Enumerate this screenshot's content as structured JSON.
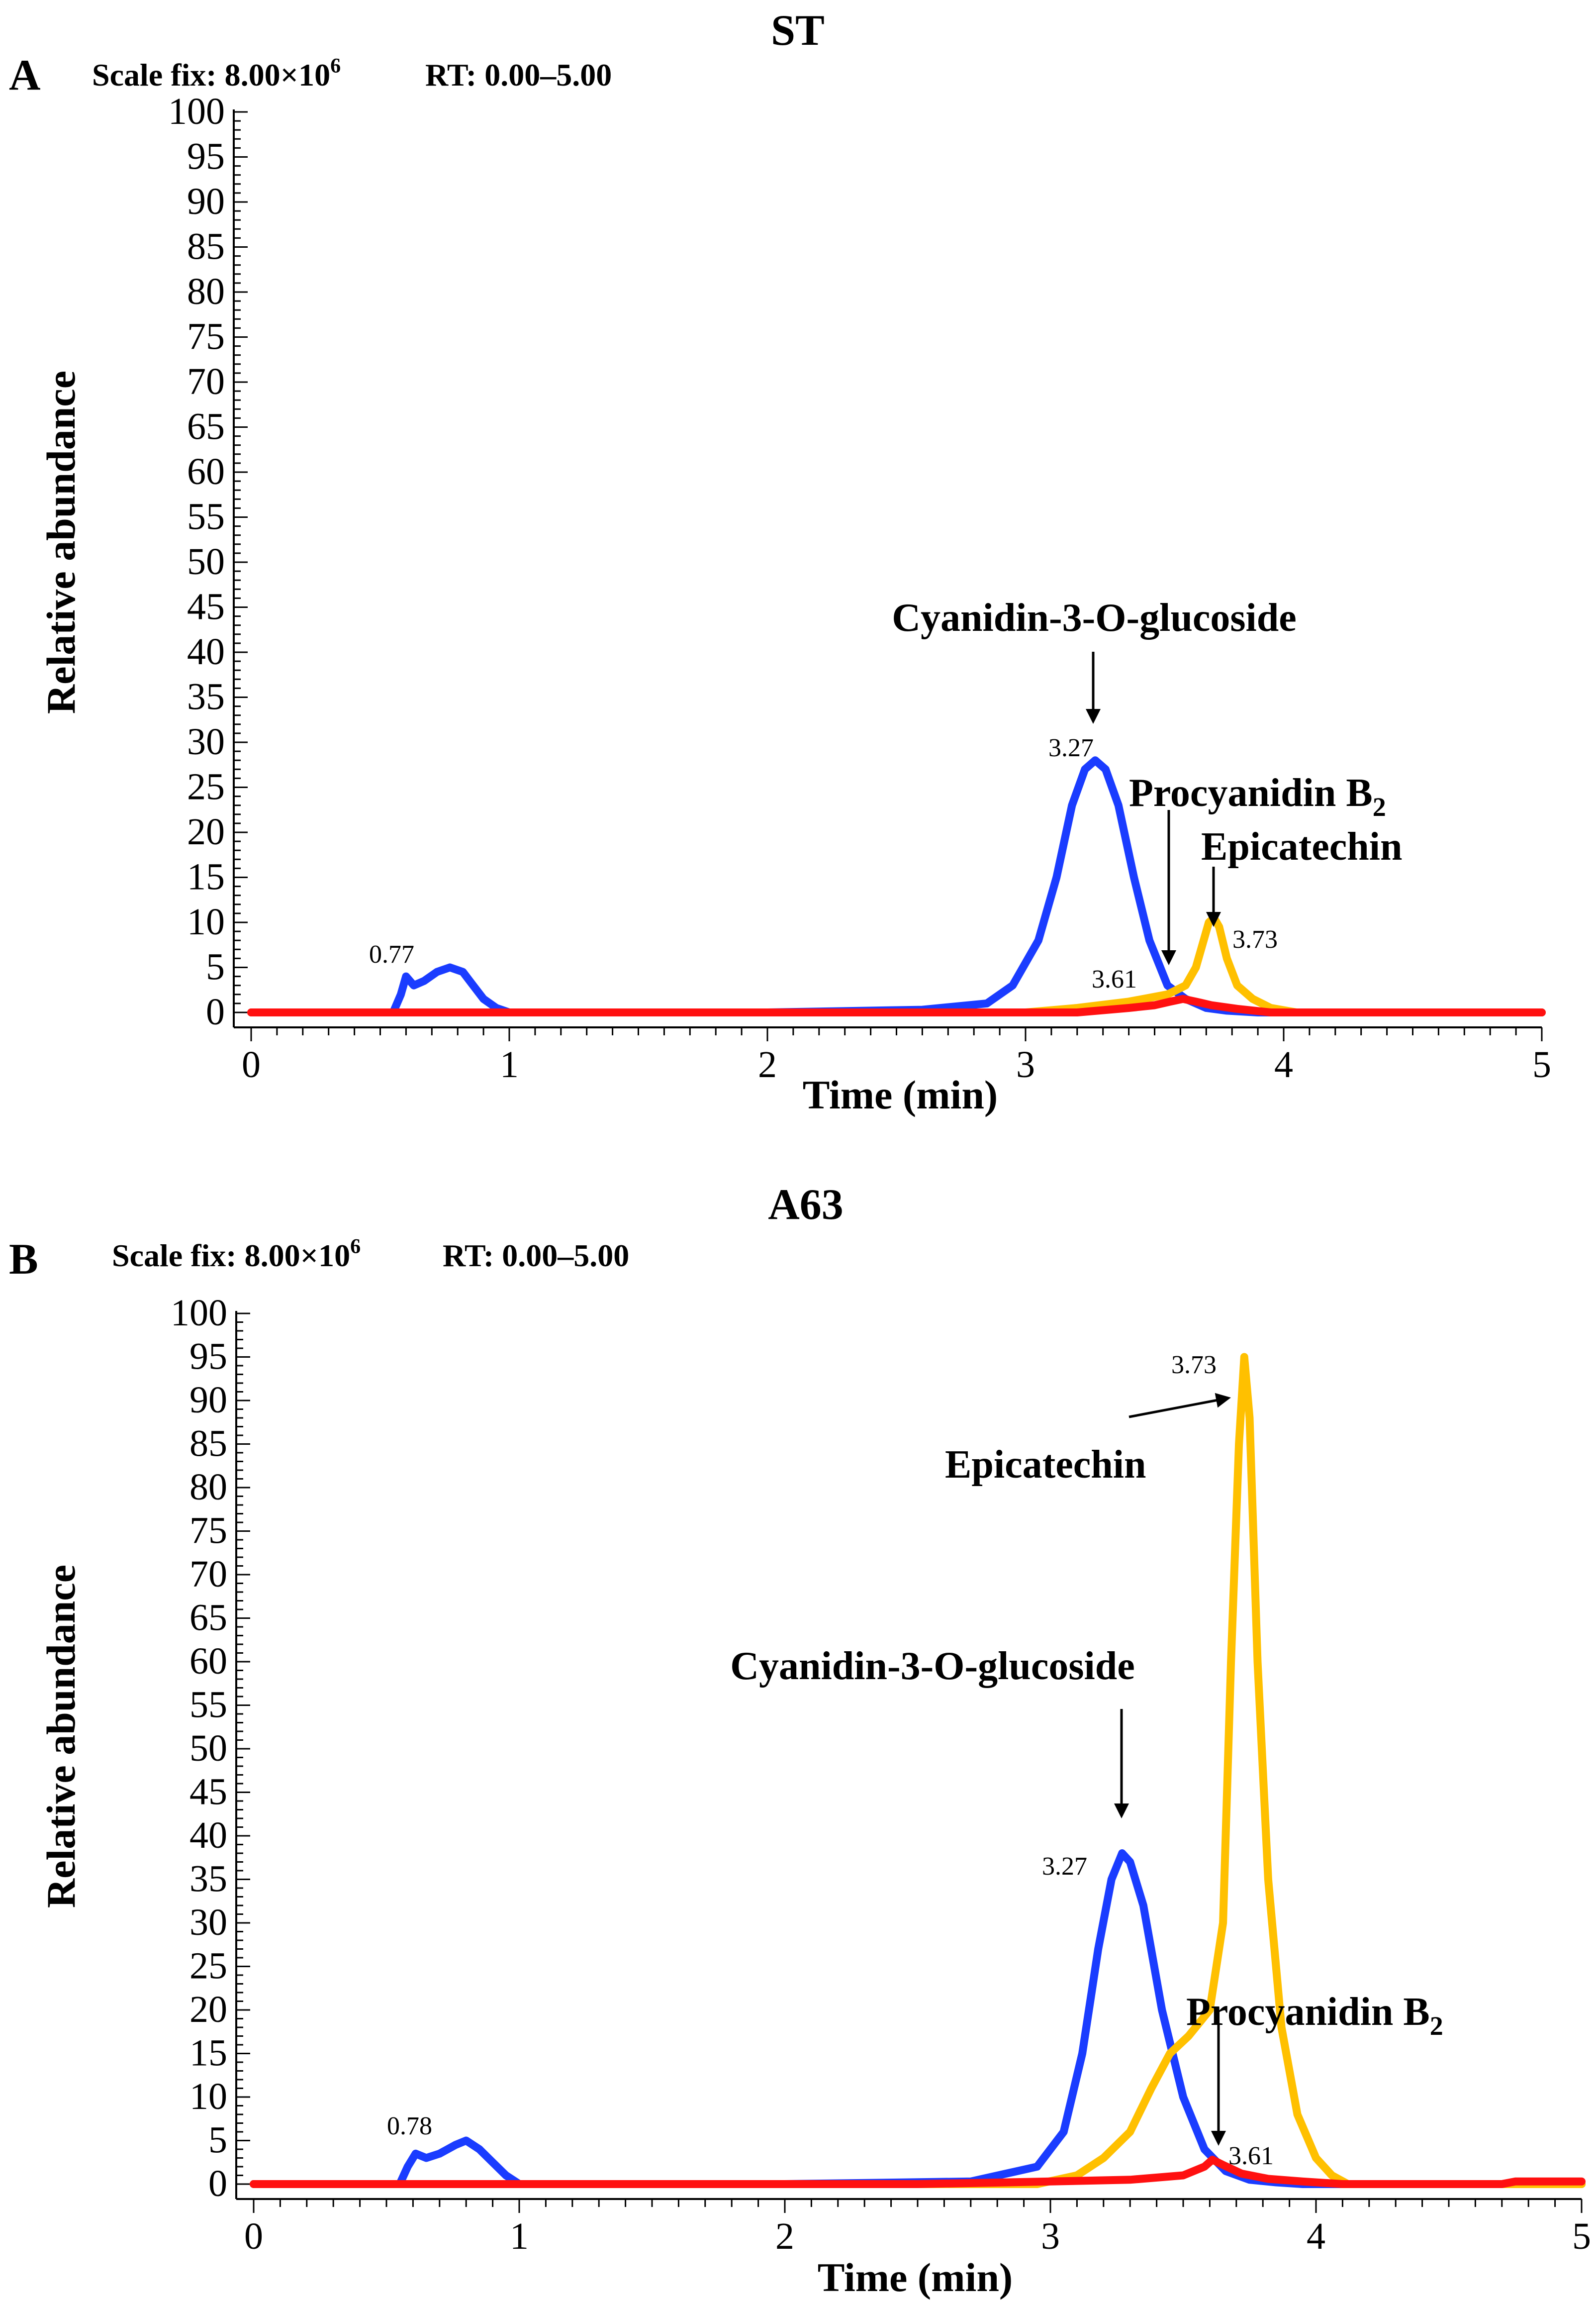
{
  "chart_data": [
    {
      "type": "line",
      "panel_letter": "A",
      "title": "ST",
      "scale_fix_label": "Scale fix: 8.00×10",
      "scale_fix_exp": "6",
      "rt_label": "RT: 0.00–5.00",
      "xlabel": "Time (min)",
      "ylabel": "Relative abundance",
      "xlim": [
        0,
        5
      ],
      "ylim": [
        0,
        100
      ],
      "xticks": [
        "0",
        "1",
        "2",
        "3",
        "4",
        "5"
      ],
      "yticks": [
        "0",
        "5",
        "10",
        "15",
        "20",
        "25",
        "30",
        "35",
        "40",
        "45",
        "50",
        "55",
        "60",
        "65",
        "70",
        "75",
        "80",
        "85",
        "90",
        "95",
        "100"
      ],
      "series": [
        {
          "name": "Cyanidin-3-O-glucoside",
          "color": "#1a3cff",
          "x": [
            0.0,
            0.55,
            0.58,
            0.6,
            0.63,
            0.67,
            0.72,
            0.77,
            0.82,
            0.86,
            0.9,
            0.95,
            1.0,
            2.0,
            2.6,
            2.85,
            2.95,
            3.05,
            3.12,
            3.18,
            3.23,
            3.27,
            3.31,
            3.36,
            3.42,
            3.48,
            3.55,
            3.62,
            3.7,
            3.78,
            3.9,
            5.0
          ],
          "y": [
            0,
            0,
            2,
            4,
            3,
            3.5,
            4.5,
            5,
            4.5,
            3,
            1.5,
            0.5,
            0,
            0,
            0.3,
            1,
            3,
            8,
            15,
            23,
            27,
            28,
            27,
            23,
            15,
            8,
            3,
            1.5,
            0.5,
            0.2,
            0,
            0
          ]
        },
        {
          "name": "Procyanidin B2",
          "color": "#ff1010",
          "x": [
            0.0,
            3.2,
            3.4,
            3.5,
            3.56,
            3.61,
            3.66,
            3.72,
            3.82,
            3.95,
            5.0
          ],
          "y": [
            0,
            0,
            0.5,
            0.8,
            1.2,
            1.5,
            1.2,
            0.8,
            0.4,
            0,
            0
          ]
        },
        {
          "name": "Epicatechin",
          "color": "#ffc000",
          "x": [
            0.0,
            3.0,
            3.2,
            3.4,
            3.55,
            3.62,
            3.66,
            3.69,
            3.71,
            3.73,
            3.75,
            3.78,
            3.82,
            3.88,
            3.95,
            4.05,
            5.0
          ],
          "y": [
            0,
            0,
            0.5,
            1.2,
            2,
            3,
            5,
            8,
            10,
            10.5,
            9.5,
            6,
            3,
            1.5,
            0.5,
            0,
            0
          ]
        }
      ],
      "annotations": {
        "cyanidin_label": "Cyanidin-3-O-glucoside",
        "procyanidin_label": "Procyanidin B",
        "procyanidin_sub": "2",
        "epicatechin_label": "Epicatechin",
        "peak_077": "0.77",
        "peak_327": "3.27",
        "peak_361": "3.61",
        "peak_373": "3.73"
      }
    },
    {
      "type": "line",
      "panel_letter": "B",
      "title": "A63",
      "scale_fix_label": "Scale fix: 8.00×10",
      "scale_fix_exp": "6",
      "rt_label": "RT: 0.00–5.00",
      "xlabel": "Time (min)",
      "ylabel": "Relative abundance",
      "xlim": [
        0,
        5
      ],
      "ylim": [
        0,
        100
      ],
      "xticks": [
        "0",
        "1",
        "2",
        "3",
        "4",
        "5"
      ],
      "yticks": [
        "0",
        "5",
        "10",
        "15",
        "20",
        "25",
        "30",
        "35",
        "40",
        "45",
        "50",
        "55",
        "60",
        "65",
        "70",
        "75",
        "80",
        "85",
        "90",
        "95",
        "100"
      ],
      "series": [
        {
          "name": "Cyanidin-3-O-glucoside",
          "color": "#1a3cff",
          "x": [
            0.0,
            0.55,
            0.58,
            0.61,
            0.65,
            0.7,
            0.76,
            0.8,
            0.85,
            0.9,
            0.95,
            1.0,
            2.0,
            2.7,
            2.95,
            3.05,
            3.12,
            3.18,
            3.23,
            3.27,
            3.3,
            3.35,
            3.42,
            3.5,
            3.58,
            3.66,
            3.75,
            3.85,
            3.95,
            5.0
          ],
          "y": [
            0,
            0,
            2,
            3.5,
            3,
            3.5,
            4.5,
            5,
            4,
            2.5,
            1,
            0,
            0,
            0.3,
            2,
            6,
            15,
            27,
            35,
            38,
            37,
            32,
            20,
            10,
            4,
            1.5,
            0.5,
            0.2,
            0,
            0
          ]
        },
        {
          "name": "Procyanidin B2",
          "color": "#ff1010",
          "x": [
            0.0,
            2.5,
            3.0,
            3.3,
            3.5,
            3.58,
            3.61,
            3.65,
            3.72,
            3.82,
            3.95,
            4.1,
            4.7,
            4.75,
            5.0
          ],
          "y": [
            0,
            0,
            0.3,
            0.5,
            1,
            2,
            2.8,
            2.2,
            1.2,
            0.6,
            0.3,
            0,
            0,
            0.3,
            0.3
          ]
        },
        {
          "name": "Epicatechin",
          "color": "#ffc000",
          "x": [
            0.0,
            2.95,
            3.1,
            3.2,
            3.3,
            3.38,
            3.45,
            3.52,
            3.6,
            3.65,
            3.68,
            3.71,
            3.73,
            3.75,
            3.78,
            3.82,
            3.87,
            3.93,
            4.0,
            4.06,
            4.12,
            5.0
          ],
          "y": [
            0,
            0,
            1,
            3,
            6,
            11,
            15,
            17,
            20,
            30,
            60,
            85,
            95,
            88,
            60,
            35,
            18,
            8,
            3,
            1,
            0,
            0
          ]
        }
      ],
      "annotations": {
        "cyanidin_label": "Cyanidin-3-O-glucoside",
        "procyanidin_label": "Procyanidin B",
        "procyanidin_sub": "2",
        "epicatechin_label": "Epicatechin",
        "peak_078": "0.78",
        "peak_327": "3.27",
        "peak_361": "3.61",
        "peak_373": "3.73"
      }
    }
  ]
}
